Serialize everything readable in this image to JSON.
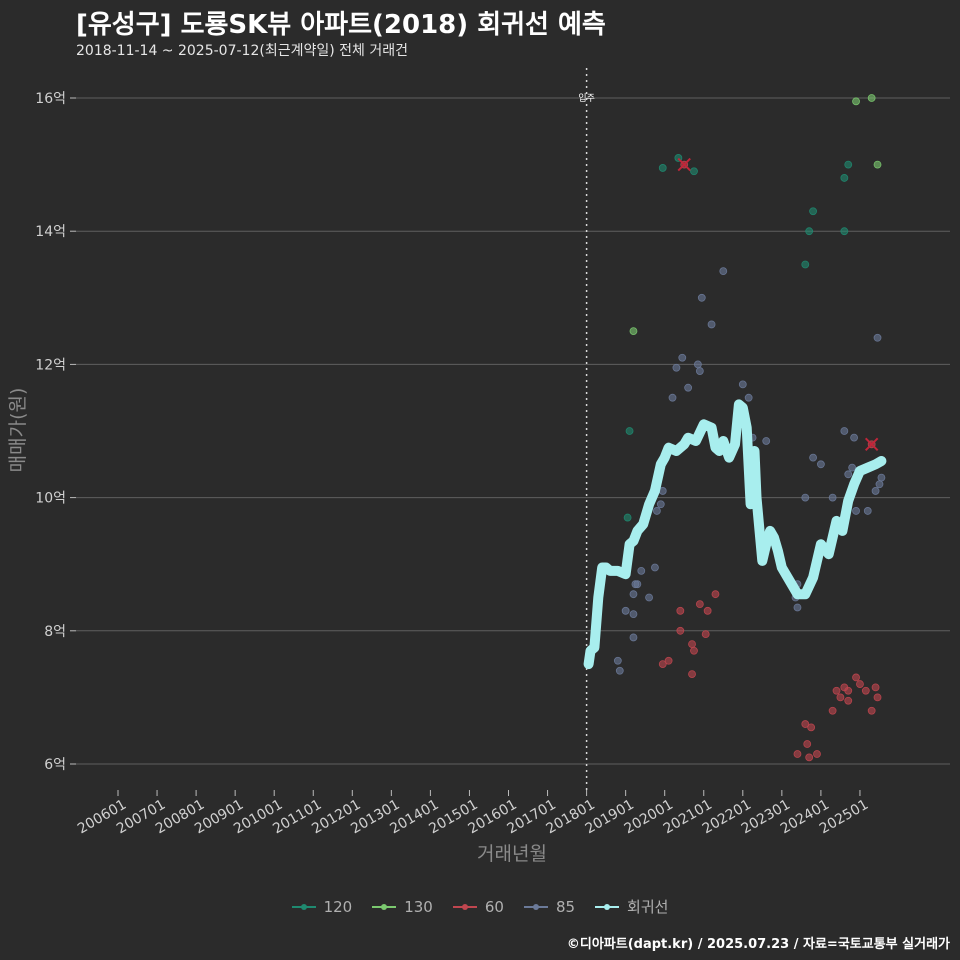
{
  "header": {
    "title": "[유성구] 도룡SK뷰 아파트(2018) 회귀선 예측",
    "subtitle": "2018-11-14 ~ 2025-07-12(최근계약일) 전체 거래건"
  },
  "caption": "©디아파트(dapt.kr) / 2025.07.23 / 자료=국토교통부 실거래가",
  "colors": {
    "background": "#2b2b2b",
    "grid": "#5f5f5f",
    "s120": "#1f8a70",
    "s130": "#7bc96f",
    "s60": "#c0464f",
    "s85": "#6b7a99",
    "regression": "#a8eeee",
    "outlier": "#c0263a"
  },
  "chart_data": {
    "type": "scatter",
    "title": "[유성구] 도룡SK뷰 아파트(2018) 회귀선 예측",
    "xlabel": "거래년월",
    "ylabel": "매매가(원)",
    "xlim": [
      2005.8,
      2027.0
    ],
    "ylim": [
      5.8,
      16.4
    ],
    "x_ticks": [
      2006,
      2007,
      2008,
      2009,
      2010,
      2011,
      2012,
      2013,
      2014,
      2015,
      2016,
      2017,
      2018,
      2019,
      2020,
      2021,
      2022,
      2023,
      2024,
      2025
    ],
    "x_tick_labels": [
      "200601",
      "200701",
      "200801",
      "200901",
      "201001",
      "201101",
      "201201",
      "201301",
      "201401",
      "201501",
      "201601",
      "201701",
      "201801",
      "201901",
      "202001",
      "202101",
      "202201",
      "202301",
      "202401",
      "202501"
    ],
    "y_ticks": [
      6,
      8,
      10,
      12,
      14,
      16
    ],
    "y_tick_labels": [
      "6억",
      "8억",
      "10억",
      "12억",
      "14억",
      "16억"
    ],
    "vline": {
      "x": 2018.0,
      "label": "입주"
    },
    "legend": [
      "120",
      "130",
      "60",
      "85",
      "회귀선"
    ],
    "series": [
      {
        "name": "120",
        "points": [
          [
            2019.05,
            9.7
          ],
          [
            2019.1,
            11.0
          ],
          [
            2019.95,
            14.95
          ],
          [
            2020.35,
            15.1
          ],
          [
            2020.75,
            14.9
          ],
          [
            2024.6,
            14.0
          ],
          [
            2024.6,
            14.8
          ],
          [
            2024.7,
            15.0
          ],
          [
            2023.8,
            14.3
          ],
          [
            2023.6,
            13.5
          ],
          [
            2023.7,
            14.0
          ]
        ]
      },
      {
        "name": "130",
        "points": [
          [
            2019.2,
            12.5
          ],
          [
            2024.9,
            15.95
          ],
          [
            2025.3,
            16.0
          ],
          [
            2025.45,
            15.0
          ]
        ]
      },
      {
        "name": "60",
        "points": [
          [
            2019.95,
            7.5
          ],
          [
            2020.1,
            7.55
          ],
          [
            2020.4,
            8.3
          ],
          [
            2020.4,
            8.0
          ],
          [
            2020.7,
            7.8
          ],
          [
            2020.75,
            7.7
          ],
          [
            2020.7,
            7.35
          ],
          [
            2020.9,
            8.4
          ],
          [
            2021.1,
            8.3
          ],
          [
            2021.05,
            7.95
          ],
          [
            2021.3,
            8.55
          ],
          [
            2020.5,
            15.0
          ],
          [
            2023.4,
            6.15
          ],
          [
            2023.6,
            6.6
          ],
          [
            2023.65,
            6.3
          ],
          [
            2023.7,
            6.1
          ],
          [
            2023.75,
            6.55
          ],
          [
            2023.9,
            6.15
          ],
          [
            2024.3,
            6.8
          ],
          [
            2024.4,
            7.1
          ],
          [
            2024.5,
            7.0
          ],
          [
            2024.7,
            6.95
          ],
          [
            2024.9,
            7.3
          ],
          [
            2025.0,
            7.2
          ],
          [
            2025.15,
            7.1
          ],
          [
            2025.3,
            6.8
          ],
          [
            2025.4,
            7.15
          ],
          [
            2025.45,
            7.0
          ],
          [
            2025.3,
            10.8
          ],
          [
            2024.6,
            7.15
          ],
          [
            2024.7,
            7.1
          ]
        ]
      },
      {
        "name": "85",
        "points": [
          [
            2018.8,
            7.55
          ],
          [
            2018.85,
            7.4
          ],
          [
            2019.0,
            8.3
          ],
          [
            2019.2,
            8.55
          ],
          [
            2019.2,
            8.25
          ],
          [
            2019.25,
            8.7
          ],
          [
            2019.3,
            8.7
          ],
          [
            2019.2,
            7.9
          ],
          [
            2019.4,
            8.9
          ],
          [
            2019.6,
            8.5
          ],
          [
            2019.75,
            8.95
          ],
          [
            2019.8,
            9.8
          ],
          [
            2019.9,
            9.9
          ],
          [
            2019.95,
            10.1
          ],
          [
            2020.2,
            11.5
          ],
          [
            2020.3,
            11.95
          ],
          [
            2020.45,
            12.1
          ],
          [
            2020.6,
            11.65
          ],
          [
            2020.9,
            11.9
          ],
          [
            2020.85,
            12.0
          ],
          [
            2020.95,
            13.0
          ],
          [
            2021.2,
            12.6
          ],
          [
            2021.5,
            13.4
          ],
          [
            2022.0,
            11.7
          ],
          [
            2022.15,
            11.5
          ],
          [
            2022.25,
            10.9
          ],
          [
            2022.3,
            10.0
          ],
          [
            2022.6,
            10.85
          ],
          [
            2023.4,
            8.7
          ],
          [
            2023.35,
            8.5
          ],
          [
            2023.4,
            8.35
          ],
          [
            2023.8,
            10.6
          ],
          [
            2024.0,
            10.5
          ],
          [
            2024.3,
            10.0
          ],
          [
            2024.6,
            11.0
          ],
          [
            2024.7,
            10.35
          ],
          [
            2024.8,
            10.45
          ],
          [
            2024.85,
            10.9
          ],
          [
            2024.9,
            9.8
          ],
          [
            2025.0,
            10.4
          ],
          [
            2025.2,
            9.8
          ],
          [
            2025.4,
            10.1
          ],
          [
            2025.45,
            12.4
          ],
          [
            2025.5,
            10.2
          ],
          [
            2025.55,
            10.3
          ],
          [
            2023.6,
            10.0
          ]
        ]
      }
    ],
    "outliers": [
      [
        2020.5,
        15.0
      ],
      [
        2025.3,
        10.8
      ]
    ],
    "regression": [
      [
        2018.05,
        7.5
      ],
      [
        2018.1,
        7.7
      ],
      [
        2018.2,
        7.75
      ],
      [
        2018.3,
        8.5
      ],
      [
        2018.4,
        8.95
      ],
      [
        2018.5,
        8.95
      ],
      [
        2018.6,
        8.9
      ],
      [
        2018.8,
        8.9
      ],
      [
        2019.0,
        8.85
      ],
      [
        2019.1,
        9.3
      ],
      [
        2019.2,
        9.35
      ],
      [
        2019.3,
        9.5
      ],
      [
        2019.45,
        9.6
      ],
      [
        2019.6,
        9.9
      ],
      [
        2019.75,
        10.1
      ],
      [
        2019.9,
        10.5
      ],
      [
        2020.0,
        10.6
      ],
      [
        2020.1,
        10.75
      ],
      [
        2020.3,
        10.7
      ],
      [
        2020.5,
        10.8
      ],
      [
        2020.6,
        10.9
      ],
      [
        2020.8,
        10.85
      ],
      [
        2021.0,
        11.1
      ],
      [
        2021.2,
        11.05
      ],
      [
        2021.3,
        10.75
      ],
      [
        2021.4,
        10.7
      ],
      [
        2021.5,
        10.85
      ],
      [
        2021.65,
        10.6
      ],
      [
        2021.8,
        10.8
      ],
      [
        2021.9,
        11.4
      ],
      [
        2022.0,
        11.35
      ],
      [
        2022.1,
        11.05
      ],
      [
        2022.2,
        9.9
      ],
      [
        2022.3,
        10.7
      ],
      [
        2022.35,
        10.0
      ],
      [
        2022.5,
        9.05
      ],
      [
        2022.6,
        9.3
      ],
      [
        2022.7,
        9.5
      ],
      [
        2022.8,
        9.4
      ],
      [
        2022.9,
        9.2
      ],
      [
        2023.0,
        8.95
      ],
      [
        2023.2,
        8.75
      ],
      [
        2023.4,
        8.55
      ],
      [
        2023.6,
        8.55
      ],
      [
        2023.8,
        8.8
      ],
      [
        2024.0,
        9.3
      ],
      [
        2024.2,
        9.15
      ],
      [
        2024.4,
        9.65
      ],
      [
        2024.55,
        9.5
      ],
      [
        2024.7,
        9.95
      ],
      [
        2024.85,
        10.2
      ],
      [
        2025.0,
        10.4
      ],
      [
        2025.2,
        10.45
      ],
      [
        2025.4,
        10.5
      ],
      [
        2025.55,
        10.55
      ]
    ]
  }
}
